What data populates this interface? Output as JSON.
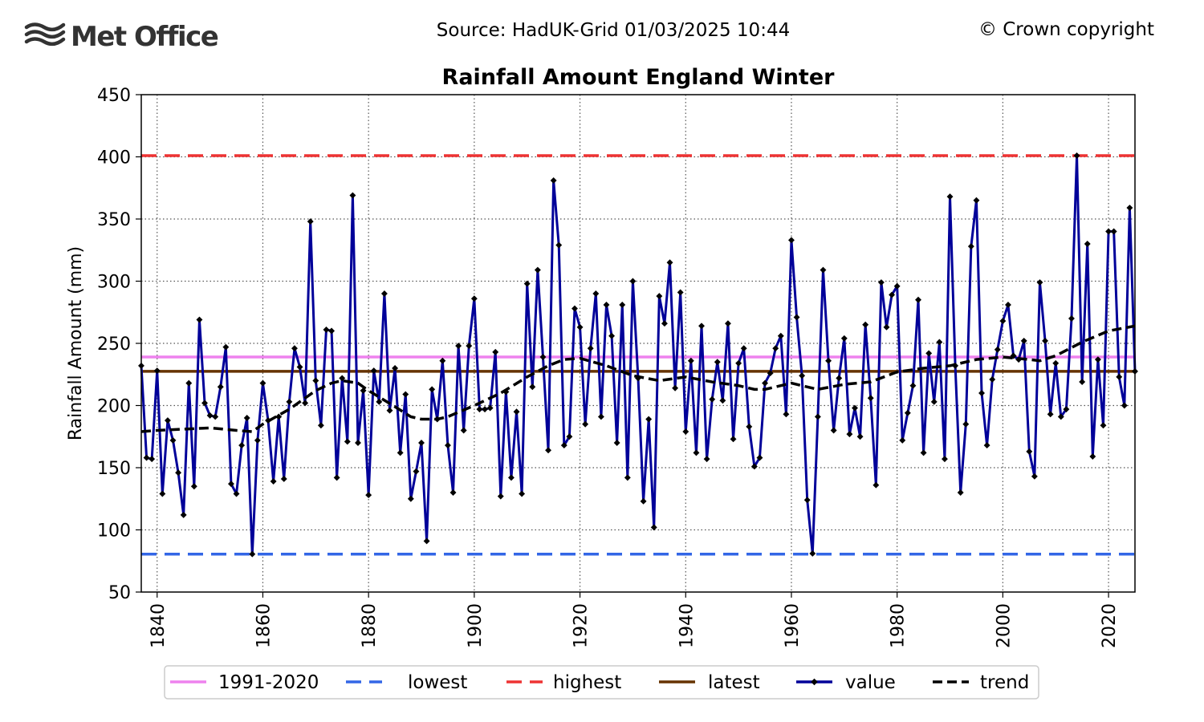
{
  "header": {
    "logo_text": "Met Office",
    "source": "Source: HadUK-Grid 01/03/2025 10:44",
    "copyright": "© Crown copyright"
  },
  "colors": {
    "baseline": "#ee82ee",
    "lowest": "#3366e6",
    "highest": "#ee3333",
    "latest": "#663300",
    "value": "#000099",
    "trend": "#000000"
  },
  "chart_data": {
    "type": "line",
    "title": "Rainfall Amount England Winter",
    "ylabel": "Rainfall Amount (mm)",
    "xlabel": "",
    "xlim": [
      1837,
      2025
    ],
    "ylim": [
      50,
      450
    ],
    "yticks": [
      50,
      100,
      150,
      200,
      250,
      300,
      350,
      400,
      450
    ],
    "xticks": [
      1840,
      1860,
      1880,
      1900,
      1920,
      1940,
      1960,
      1980,
      2000,
      2020
    ],
    "grid": true,
    "legend_position": "bottom",
    "reference_lines": [
      {
        "name": "1991-2020",
        "value": 239,
        "style": "solid"
      },
      {
        "name": "lowest",
        "value": 80.5,
        "style": "dashed"
      },
      {
        "name": "highest",
        "value": 401,
        "style": "dashed"
      },
      {
        "name": "latest",
        "value": 227.5,
        "style": "solid"
      }
    ],
    "legend": [
      "1991-2020",
      "lowest",
      "highest",
      "latest",
      "value",
      "trend"
    ],
    "series": [
      {
        "name": "value",
        "x_start": 1837,
        "values": [
          232,
          158,
          157,
          228,
          129,
          188,
          172,
          146,
          112,
          218,
          135,
          269,
          202,
          192,
          191,
          215,
          247,
          137,
          129,
          168,
          190,
          80.5,
          172,
          218,
          188,
          139,
          191,
          141,
          203,
          246,
          231,
          202,
          348,
          220,
          184,
          261,
          260,
          142,
          222,
          171,
          369,
          170,
          212,
          128,
          228,
          203,
          290,
          196,
          230,
          162,
          209,
          125,
          147,
          170,
          91,
          213,
          189,
          236,
          168,
          130,
          248,
          180,
          248,
          286,
          197,
          197,
          198,
          243,
          127,
          211,
          142,
          195,
          129,
          298,
          215,
          309,
          239,
          164,
          381,
          329,
          168,
          175,
          278,
          263,
          185,
          246,
          290,
          191,
          281,
          256,
          170,
          281,
          142,
          300,
          222,
          123,
          189,
          102,
          288,
          266,
          315,
          214,
          291,
          179,
          236,
          162,
          264,
          157,
          205,
          235,
          204,
          266,
          173,
          234,
          246,
          183,
          151,
          158,
          218,
          226,
          246,
          256,
          193,
          333,
          271,
          224,
          124,
          81,
          191,
          309,
          236,
          180,
          222,
          254,
          177,
          198,
          175,
          265,
          206,
          136,
          299,
          263,
          289,
          296,
          172,
          194,
          216,
          285,
          162,
          242,
          203,
          251,
          157,
          368,
          232,
          130,
          185,
          328,
          365,
          210,
          168,
          221,
          245,
          268,
          281,
          240,
          237,
          252,
          163,
          143,
          299,
          252,
          193,
          234,
          191,
          197,
          270,
          401,
          219,
          330,
          159,
          237,
          184,
          340,
          340,
          223,
          200,
          359,
          227.5
        ]
      },
      {
        "name": "trend",
        "x": [
          1837,
          1840,
          1845,
          1850,
          1855,
          1858,
          1860,
          1865,
          1870,
          1873,
          1875,
          1878,
          1880,
          1885,
          1888,
          1890,
          1893,
          1895,
          1900,
          1905,
          1910,
          1914,
          1917,
          1920,
          1925,
          1930,
          1935,
          1940,
          1945,
          1950,
          1953,
          1955,
          1958,
          1960,
          1965,
          1970,
          1975,
          1980,
          1985,
          1990,
          1995,
          2000,
          2005,
          2007,
          2010,
          2015,
          2020,
          2025
        ],
        "values": [
          179,
          180,
          181,
          182,
          180,
          179,
          185,
          197,
          212,
          218,
          220,
          218,
          212,
          199,
          191,
          189,
          189,
          191,
          200,
          210,
          223,
          232,
          237,
          238,
          232,
          224,
          220,
          223,
          219,
          216,
          213,
          213,
          216,
          218,
          213,
          217,
          219,
          227,
          230,
          232,
          237,
          239,
          237,
          236,
          240,
          251,
          260,
          264
        ]
      }
    ]
  }
}
